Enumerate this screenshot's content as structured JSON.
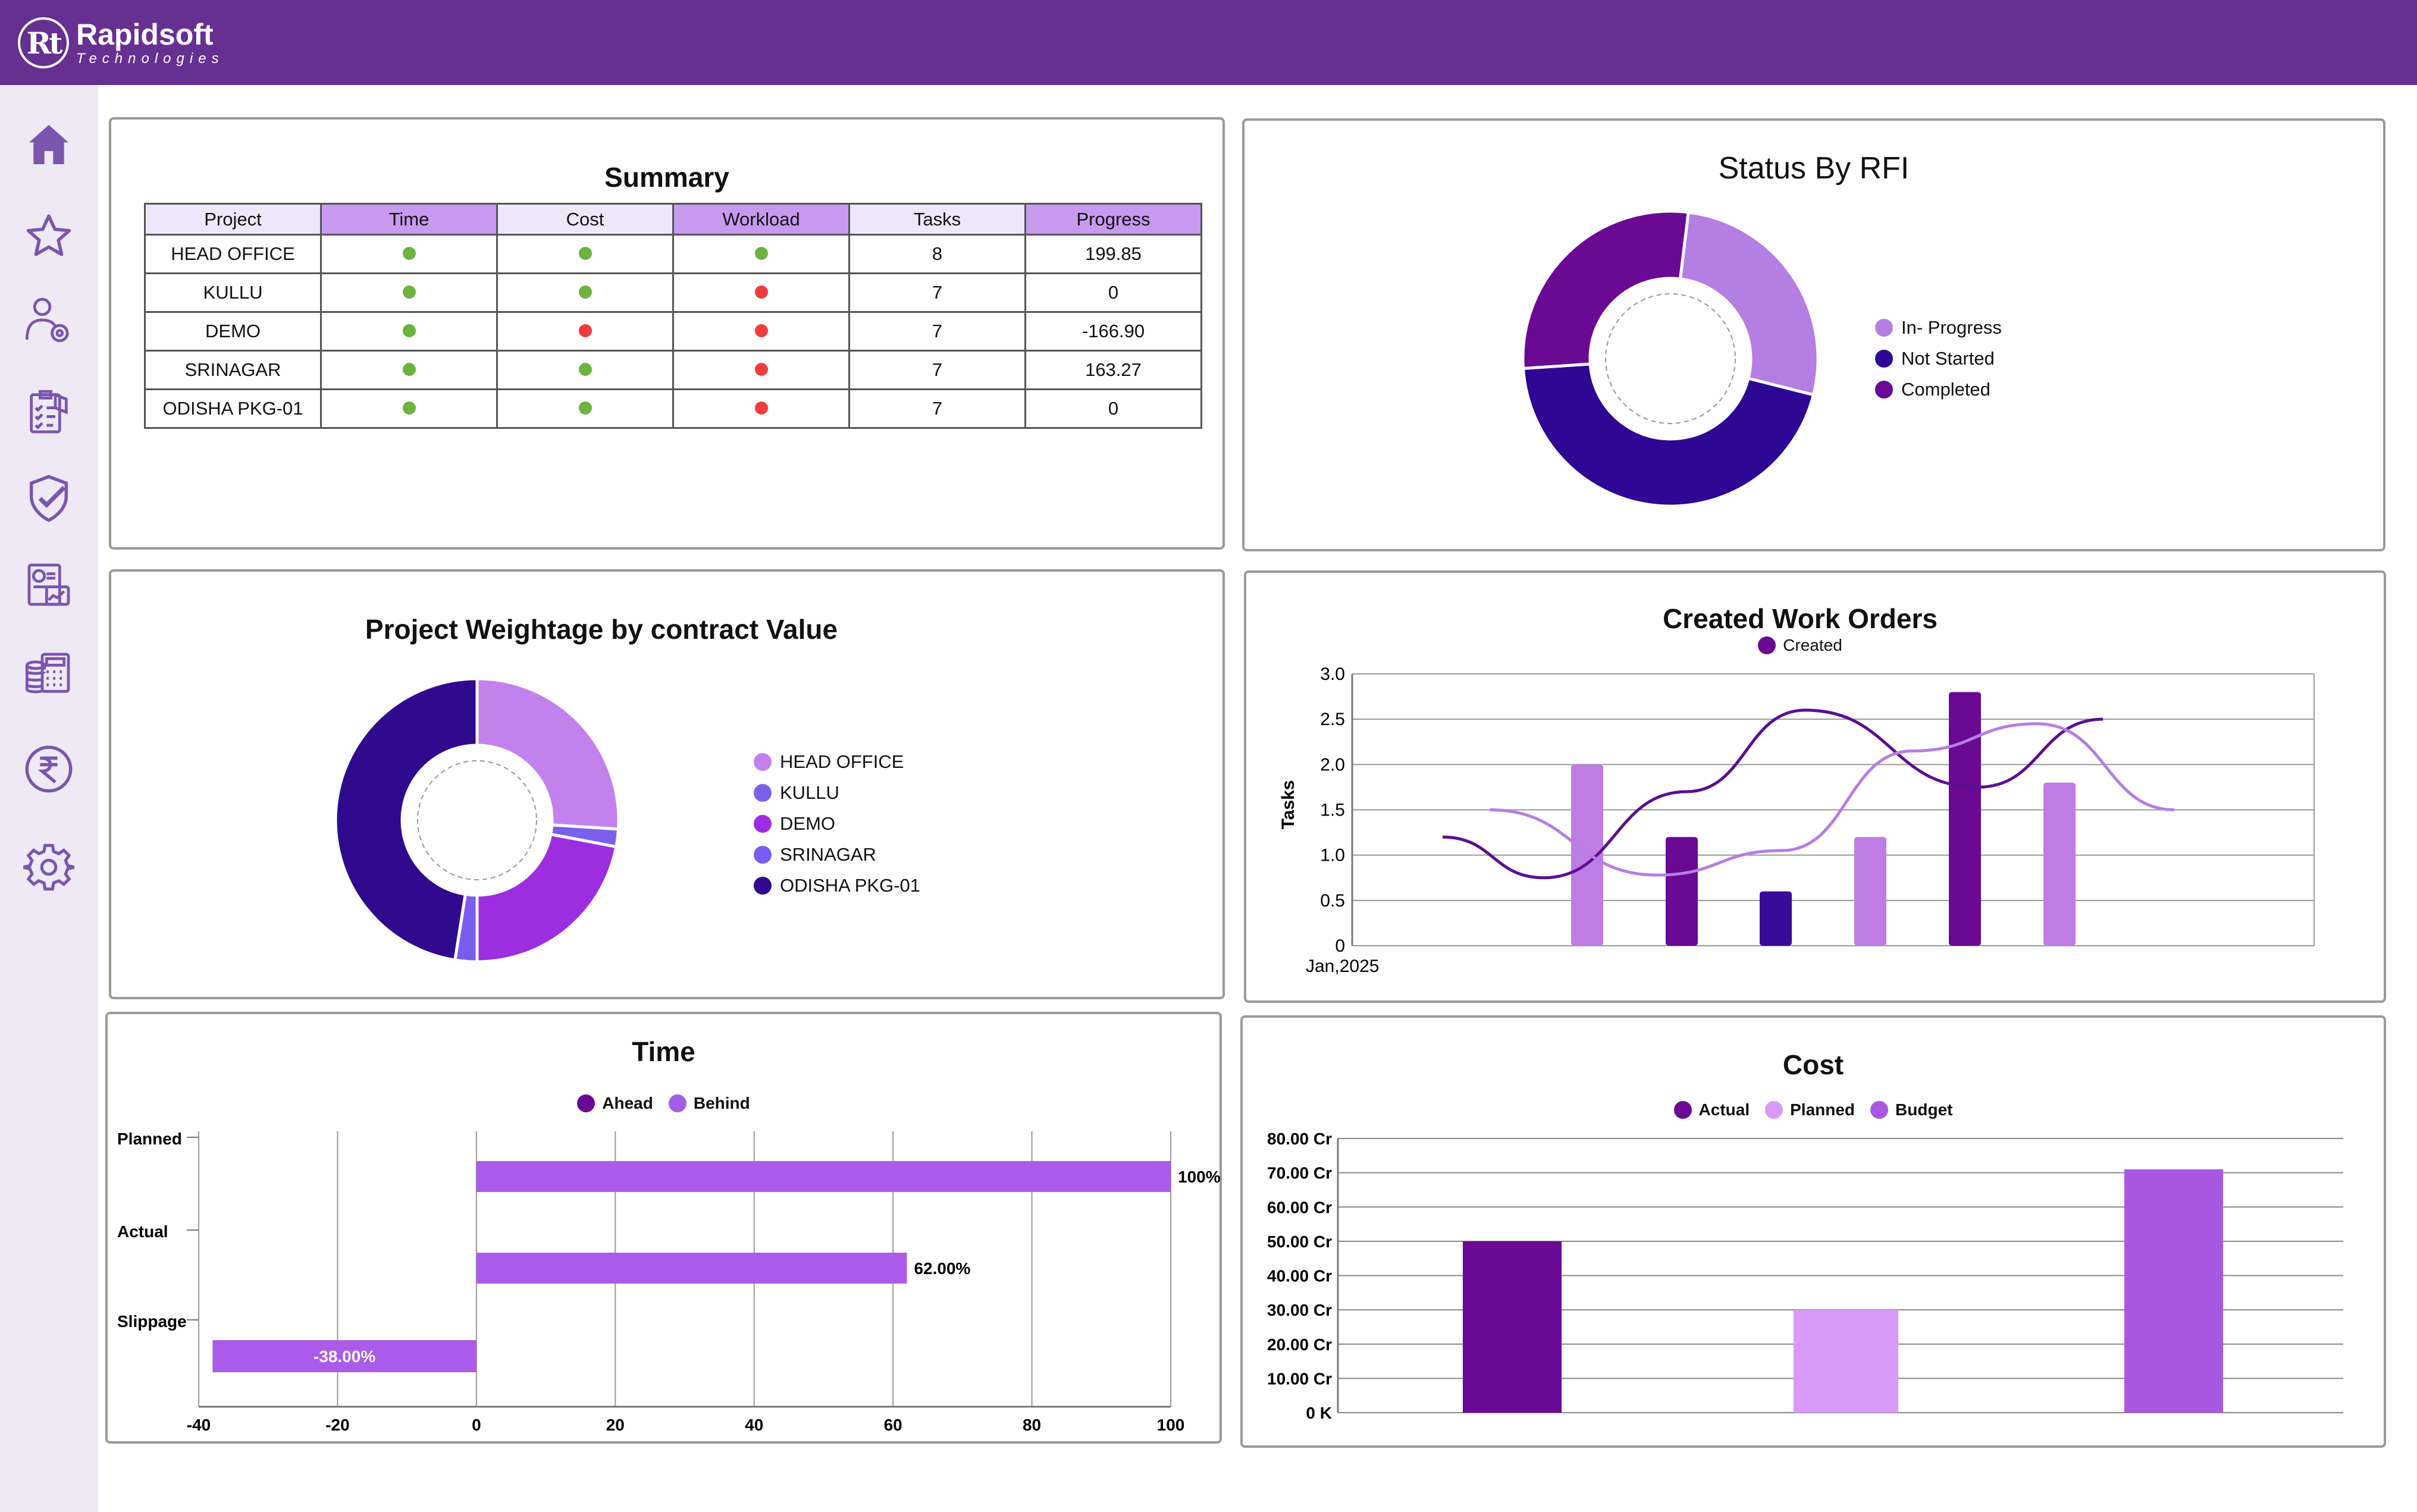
{
  "brand": {
    "logo_mark": "Rt",
    "name": "Rapidsoft",
    "tagline": "Technologies"
  },
  "sidebar": {
    "items": [
      {
        "icon": "home-icon",
        "label": "Home"
      },
      {
        "icon": "star-icon",
        "label": "Favorites"
      },
      {
        "icon": "user-settings-icon",
        "label": "Users"
      },
      {
        "icon": "checklist-icon",
        "label": "Checklist"
      },
      {
        "icon": "shield-check-icon",
        "label": "Quality"
      },
      {
        "icon": "report-chart-icon",
        "label": "Reports"
      },
      {
        "icon": "calculator-icon",
        "label": "Billing"
      },
      {
        "icon": "rupee-icon",
        "label": "Finance"
      },
      {
        "icon": "gear-icon",
        "label": "Settings"
      }
    ]
  },
  "summary": {
    "title": "Summary",
    "columns": [
      "Project",
      "Time",
      "Cost",
      "Workload",
      "Tasks",
      "Progress"
    ],
    "rows": [
      {
        "project": "HEAD OFFICE",
        "time": "green",
        "cost": "green",
        "workload": "green",
        "tasks": "8",
        "progress": "199.85"
      },
      {
        "project": "KULLU",
        "time": "green",
        "cost": "green",
        "workload": "red",
        "tasks": "7",
        "progress": "0"
      },
      {
        "project": "DEMO",
        "time": "green",
        "cost": "red",
        "workload": "red",
        "tasks": "7",
        "progress": "-166.90"
      },
      {
        "project": "SRINAGAR",
        "time": "green",
        "cost": "green",
        "workload": "red",
        "tasks": "7",
        "progress": "163.27"
      },
      {
        "project": "ODISHA PKG-01",
        "time": "green",
        "cost": "green",
        "workload": "red",
        "tasks": "7",
        "progress": "0"
      }
    ],
    "colors": {
      "green": "#6cb33f",
      "red": "#ef3c3c"
    }
  },
  "chart_data": [
    {
      "id": "rfi",
      "type": "pie",
      "title": "Status By RFI",
      "labels": [
        "In- Progress",
        "Not Started",
        "Completed"
      ],
      "values": [
        27,
        45,
        28
      ],
      "colors": [
        "#b57ee3",
        "#2e0894",
        "#690994"
      ]
    },
    {
      "id": "weightage",
      "type": "pie",
      "title": "Project Weightage by contract Value",
      "labels": [
        "HEAD OFFICE",
        "KULLU",
        "DEMO",
        "SRINAGAR",
        "ODISHA PKG-01"
      ],
      "values": [
        26,
        2,
        22,
        2.5,
        47.5
      ],
      "colors": [
        "#c381ee",
        "#7b60ee",
        "#9c2ee0",
        "#7b5cf0",
        "#2f0a8f"
      ]
    },
    {
      "id": "workorders",
      "type": "bar",
      "title": "Created Work Orders",
      "legend": [
        "Created"
      ],
      "xlabel": "Jan,2025",
      "ylabel": "Tasks",
      "ylim": [
        0,
        3.0
      ],
      "yticks": [
        "0",
        "0.5",
        "1.0",
        "1.5",
        "2.0",
        "2.5",
        "3.0"
      ],
      "values": [
        2.0,
        1.2,
        0.6,
        1.2,
        2.8,
        1.8
      ],
      "colors": [
        "#c07ce5",
        "#6a0994",
        "#3a0a99",
        "#c07ce5",
        "#6a0994",
        "#c07ce5"
      ],
      "trend_dark": [
        1.2,
        0.75,
        1.7,
        2.6,
        1.75,
        2.5
      ],
      "trend_light": [
        1.5,
        0.78,
        1.05,
        2.15,
        2.45,
        1.5
      ]
    },
    {
      "id": "time",
      "type": "bar",
      "orientation": "horizontal",
      "title": "Time",
      "legend": [
        "Ahead",
        "Behind"
      ],
      "legend_colors": [
        "#690994",
        "#a35ee8"
      ],
      "categories": [
        "Planned",
        "Actual",
        "Slippage"
      ],
      "values": [
        100,
        62.0,
        -38.0
      ],
      "value_labels": [
        "100%",
        "62.00%",
        "-38.00%"
      ],
      "xlim": [
        -40,
        100
      ],
      "xticks": [
        "-40",
        "-20",
        "0",
        "20",
        "40",
        "60",
        "80",
        "100"
      ],
      "color": "#aa5bea"
    },
    {
      "id": "cost",
      "type": "bar",
      "title": "Cost",
      "legend": [
        "Actual",
        "Planned",
        "Budget"
      ],
      "values": [
        50,
        30,
        71
      ],
      "colors": [
        "#690994",
        "#d899f8",
        "#a957e0"
      ],
      "ylim": [
        0,
        80
      ],
      "yticks": [
        "0 K",
        "10.00 Cr",
        "20.00 Cr",
        "30.00 Cr",
        "40.00 Cr",
        "50.00 Cr",
        "60.00 Cr",
        "70.00 Cr",
        "80.00 Cr"
      ]
    }
  ]
}
